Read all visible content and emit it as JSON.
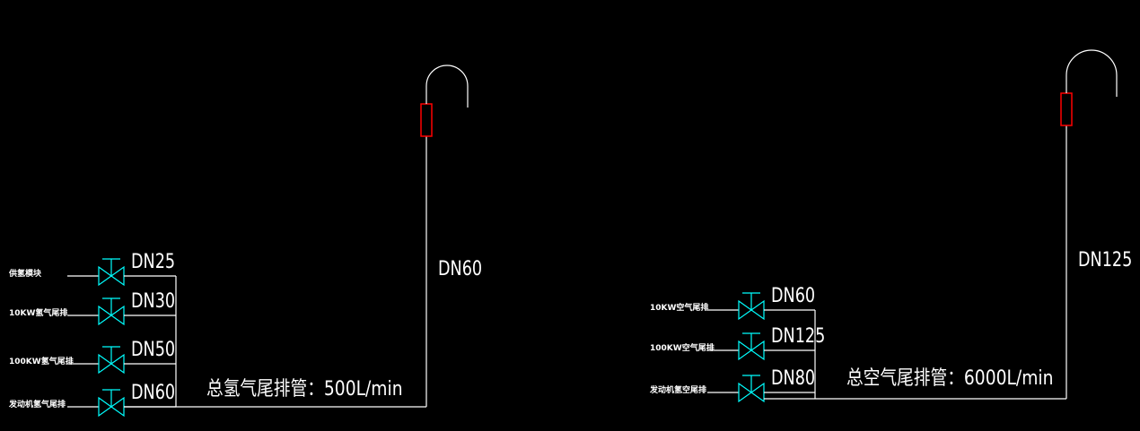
{
  "colors": {
    "pipe": "#ffffff",
    "valve": "#00ffff",
    "arrester": "#ff0000",
    "background": "#000000"
  },
  "left_system": {
    "title": "总氢气尾排管：500L/min",
    "riser_size": "DN60",
    "arrester_icon": "flame-arrester-icon",
    "branches": [
      {
        "source": "供氢模块",
        "size": "DN25"
      },
      {
        "source": "10KW氢气尾排",
        "size": "DN30"
      },
      {
        "source": "100KW氢气尾排",
        "size": "DN50"
      },
      {
        "source": "发动机氢气尾排",
        "size": "DN60"
      }
    ]
  },
  "right_system": {
    "title": "总空气尾排管：6000L/min",
    "riser_size": "DN125",
    "arrester_icon": "flame-arrester-icon",
    "branches": [
      {
        "source": "10KW空气尾排",
        "size": "DN60"
      },
      {
        "source": "100KW空气尾排",
        "size": "DN125"
      },
      {
        "source": "发动机氢空尾排",
        "size": "DN80"
      }
    ]
  }
}
